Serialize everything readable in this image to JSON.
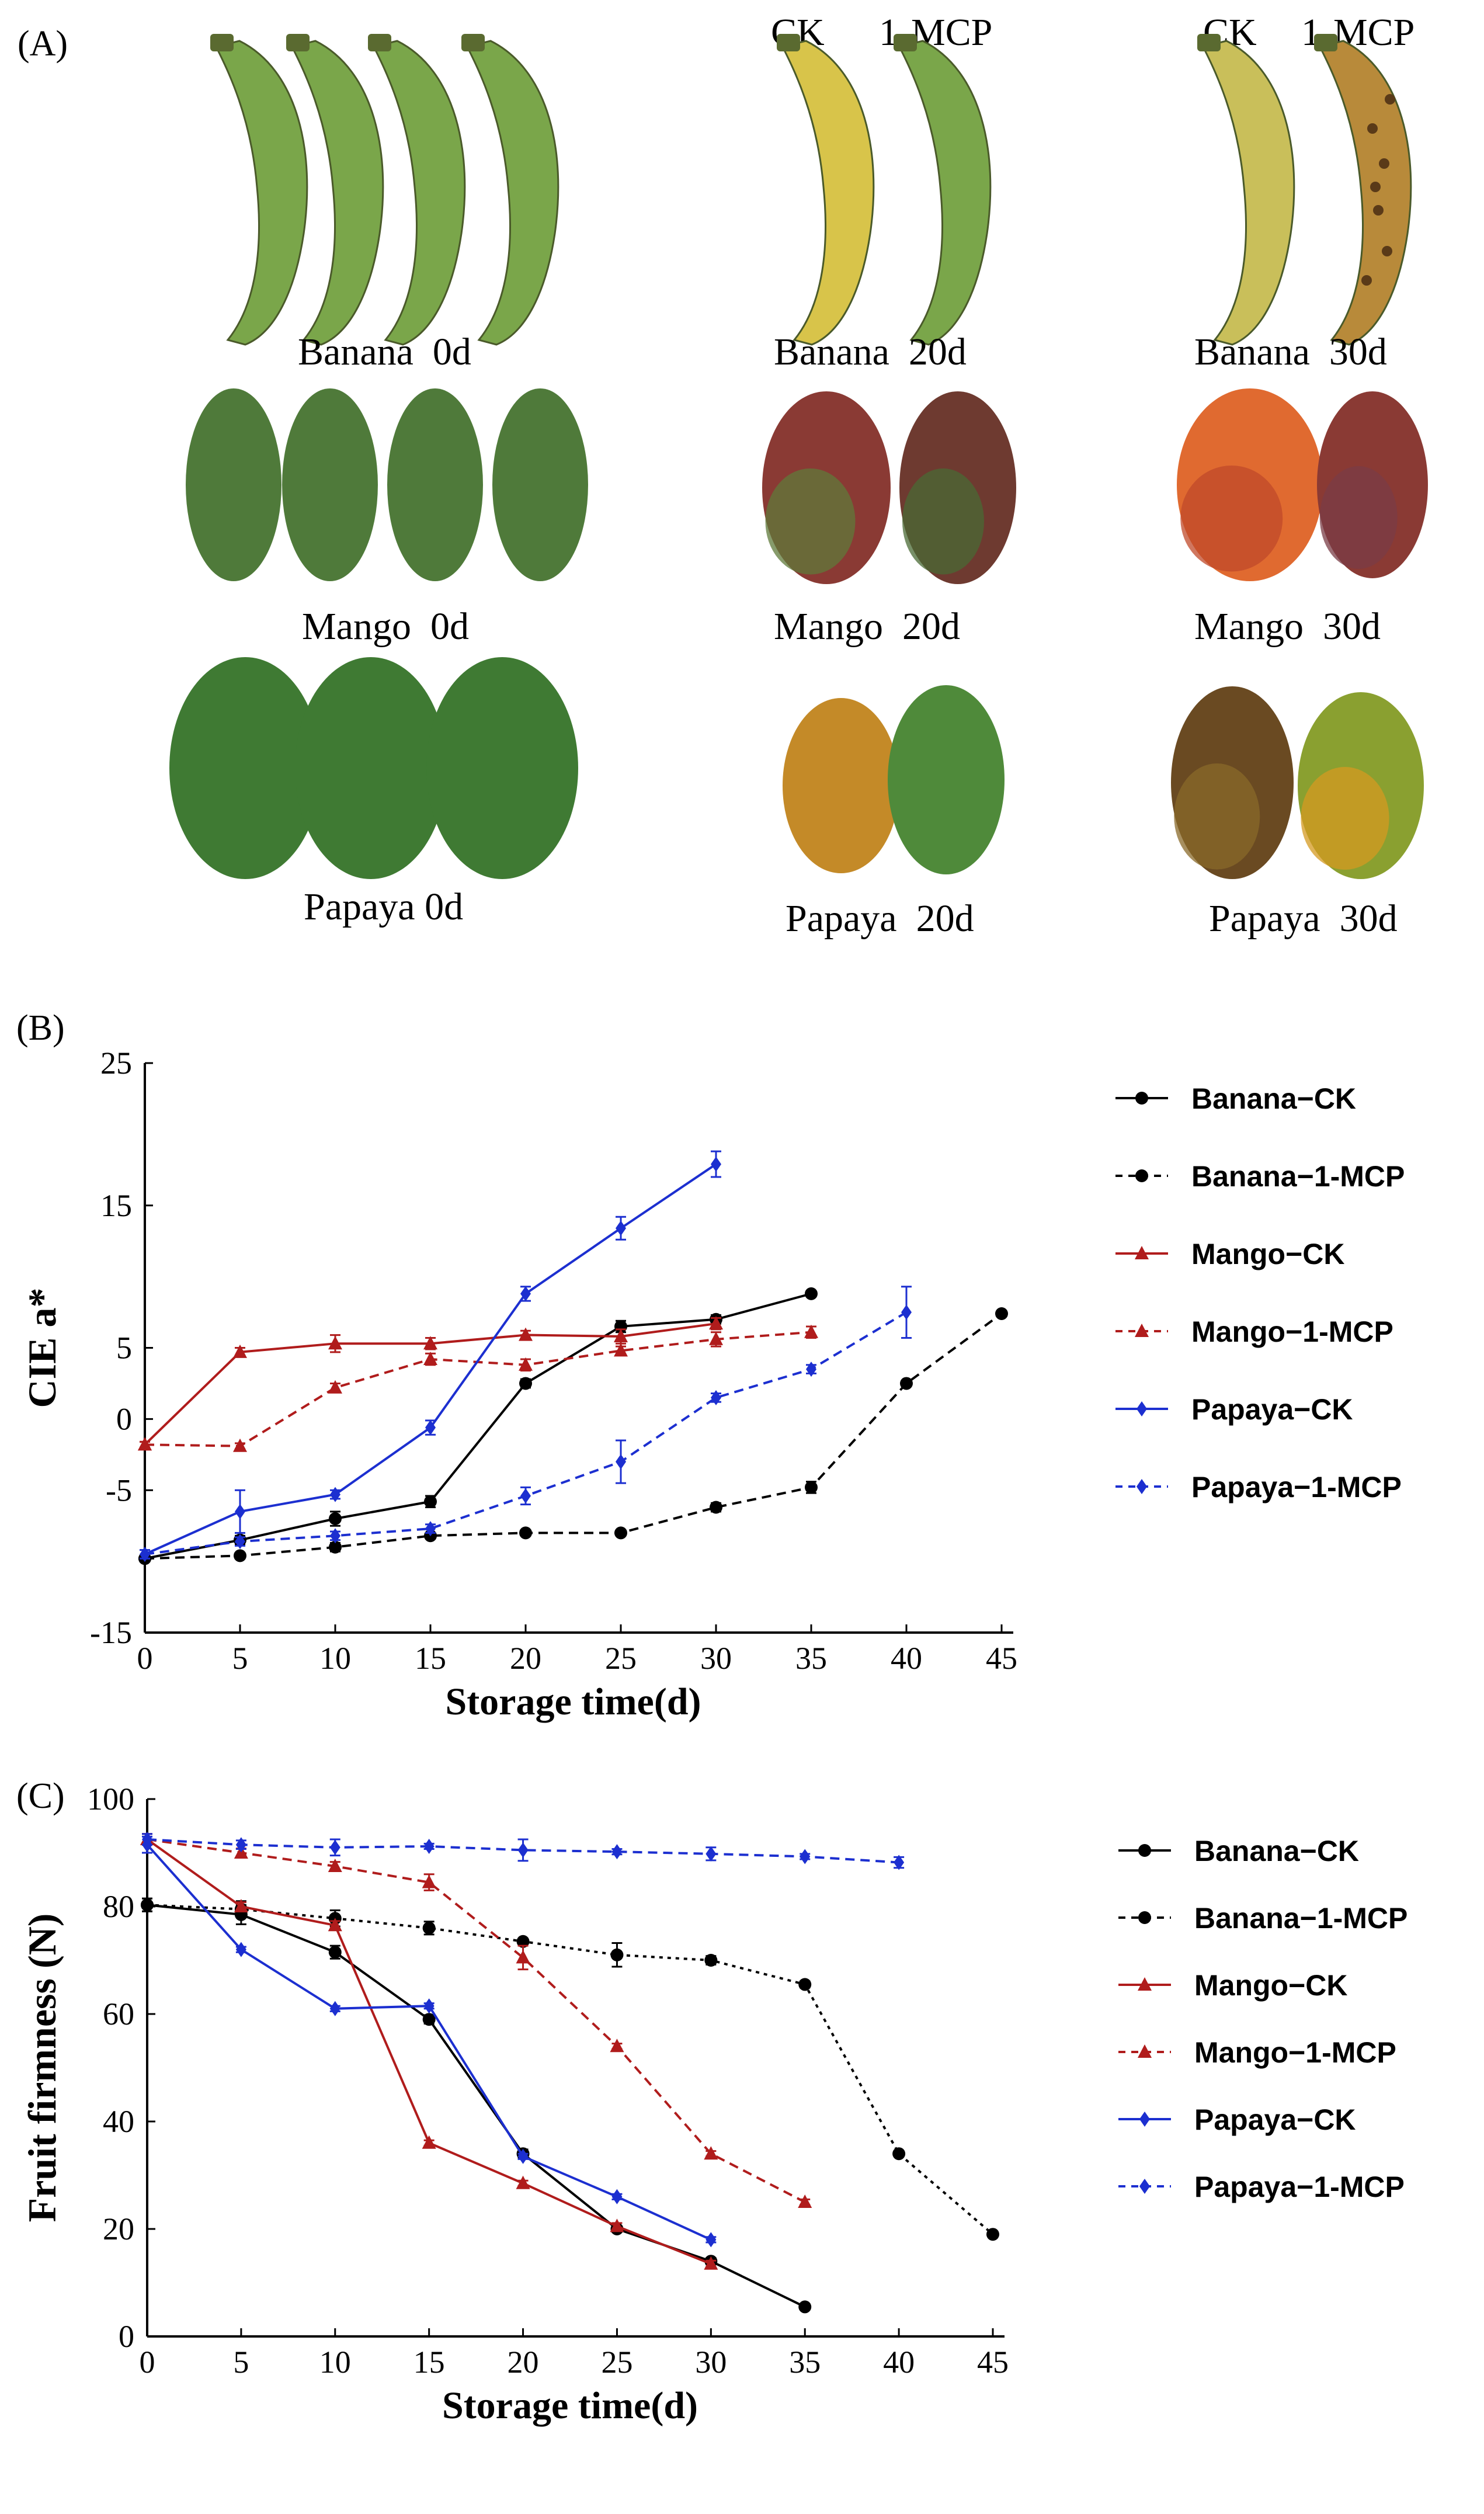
{
  "panel_a": {
    "label": "(A)",
    "column_heads": [
      "CK",
      "1-MCP",
      "CK",
      "1-MCP"
    ],
    "captions": [
      "Banana  0d",
      "Banana  20d",
      "Banana  30d",
      "Mango  0d",
      "Mango  20d",
      "Mango  30d",
      "Papaya 0d",
      "Papaya  20d",
      "Papaya  30d"
    ]
  },
  "colors": {
    "banana": "#000000",
    "mango": "#b01c1c",
    "papaya": "#1c2fd0",
    "banana_green": "#7aa64a",
    "banana_yellow": "#d8c44a",
    "mango_green": "#4f7a3a",
    "mango_red": "#8a3a34",
    "mango_orange": "#e06a30",
    "papaya_green": "#3f7a33",
    "papaya_orange": "#c48a28",
    "papaya_brown": "#6a4a22"
  },
  "chart_data": [
    {
      "panel_label": "(B)",
      "type": "line",
      "xlabel": "Storage time(d)",
      "ylabel": "CIE a*",
      "xlim": [
        0,
        45
      ],
      "ylim": [
        -15,
        25
      ],
      "xticks": [
        "0",
        "5",
        "10",
        "15",
        "20",
        "25",
        "30",
        "35",
        "40",
        "45"
      ],
      "yticks": [
        "-15",
        "-5",
        "0",
        "5",
        "15",
        "25"
      ],
      "legend_position": "right",
      "series": [
        {
          "name": "Banana−CK",
          "fruit": "banana",
          "dashed": false,
          "marker": "circle",
          "x": [
            0,
            5,
            10,
            15,
            20,
            25,
            30,
            35
          ],
          "y": [
            -9.8,
            -8.5,
            -7.0,
            -5.8,
            2.5,
            6.5,
            7.0,
            8.8
          ],
          "err": [
            0.2,
            0.3,
            0.5,
            0.4,
            0.3,
            0.4,
            0.3,
            0.2
          ]
        },
        {
          "name": "Banana−1-MCP",
          "fruit": "banana",
          "dashed": true,
          "marker": "circle",
          "x": [
            0,
            5,
            10,
            15,
            20,
            25,
            30,
            35,
            40,
            45
          ],
          "y": [
            -9.8,
            -9.6,
            -9.0,
            -8.2,
            -8.0,
            -8.0,
            -6.2,
            -4.8,
            2.5,
            7.4
          ],
          "err": [
            0.2,
            0.2,
            0.3,
            0.2,
            0.2,
            0.2,
            0.3,
            0.4,
            0.2,
            0.2
          ]
        },
        {
          "name": "Mango−CK",
          "fruit": "mango",
          "dashed": false,
          "marker": "triangle",
          "x": [
            0,
            5,
            10,
            15,
            20,
            25,
            30
          ],
          "y": [
            -1.8,
            4.7,
            5.3,
            5.3,
            5.9,
            5.8,
            6.7
          ],
          "err": [
            0.2,
            0.3,
            0.6,
            0.4,
            0.3,
            0.5,
            0.4
          ]
        },
        {
          "name": "Mango−1-MCP",
          "fruit": "mango",
          "dashed": true,
          "marker": "triangle",
          "x": [
            0,
            5,
            10,
            15,
            20,
            25,
            30,
            35
          ],
          "y": [
            -1.8,
            -1.9,
            2.2,
            4.2,
            3.8,
            4.8,
            5.6,
            6.1
          ],
          "err": [
            0.2,
            0.2,
            0.3,
            0.4,
            0.4,
            0.3,
            0.5,
            0.4
          ]
        },
        {
          "name": "Papaya−CK",
          "fruit": "papaya",
          "dashed": false,
          "marker": "diamond",
          "x": [
            0,
            5,
            10,
            15,
            20,
            25,
            30
          ],
          "y": [
            -9.5,
            -6.5,
            -5.3,
            -0.6,
            8.8,
            13.4,
            17.9
          ],
          "err": [
            0.3,
            1.5,
            0.3,
            0.5,
            0.5,
            0.8,
            0.9
          ]
        },
        {
          "name": "Papaya−1-MCP",
          "fruit": "papaya",
          "dashed": true,
          "marker": "diamond",
          "x": [
            0,
            5,
            10,
            15,
            20,
            25,
            30,
            35,
            40
          ],
          "y": [
            -9.5,
            -8.6,
            -8.2,
            -7.7,
            -5.4,
            -3.0,
            1.5,
            3.5,
            7.5
          ],
          "err": [
            0.3,
            0.3,
            0.3,
            0.3,
            0.6,
            1.5,
            0.3,
            0.3,
            1.8
          ]
        }
      ]
    },
    {
      "panel_label": "(C)",
      "type": "line",
      "xlabel": "Storage time(d)",
      "ylabel": "Fruit firmness (N)",
      "xlim": [
        0,
        45
      ],
      "ylim": [
        0,
        100
      ],
      "xticks": [
        "0",
        "5",
        "10",
        "15",
        "20",
        "25",
        "30",
        "35",
        "40",
        "45"
      ],
      "yticks": [
        "0",
        "20",
        "40",
        "60",
        "80",
        "100"
      ],
      "legend_position": "right",
      "series": [
        {
          "name": "Banana−CK",
          "fruit": "banana",
          "dashed": false,
          "marker": "circle",
          "x": [
            0,
            5,
            10,
            15,
            20,
            25,
            30,
            35
          ],
          "y": [
            80.3,
            78.5,
            71.5,
            59,
            34,
            20,
            14,
            5.5
          ],
          "err": [
            1.2,
            1.8,
            1.2,
            0.8,
            0.8,
            0.6,
            0.6,
            0.5
          ]
        },
        {
          "name": "Banana−1-MCP",
          "fruit": "banana",
          "dashed": true,
          "marker": "circle",
          "x": [
            0,
            5,
            10,
            15,
            20,
            25,
            30,
            35,
            40,
            45
          ],
          "y": [
            80.3,
            79.5,
            77.8,
            76,
            73.5,
            71,
            70,
            65.5,
            34,
            19
          ],
          "err": [
            1.2,
            1.5,
            1.5,
            1.2,
            0.5,
            2.2,
            0.8,
            0.6,
            0.5,
            0.5
          ]
        },
        {
          "name": "Mango−CK",
          "fruit": "mango",
          "dashed": false,
          "marker": "triangle",
          "x": [
            0,
            5,
            10,
            15,
            20,
            25,
            30
          ],
          "y": [
            92.5,
            80,
            76.5,
            36,
            28.5,
            20.5,
            13.5
          ],
          "err": [
            1.0,
            0.8,
            0.8,
            0.5,
            0.5,
            0.6,
            0.6
          ]
        },
        {
          "name": "Mango−1-MCP",
          "fruit": "mango",
          "dashed": true,
          "marker": "triangle",
          "x": [
            0,
            5,
            10,
            15,
            20,
            25,
            30,
            35
          ],
          "y": [
            92.5,
            90,
            87.5,
            84.5,
            70.5,
            54,
            34,
            25
          ],
          "err": [
            1.0,
            0.8,
            0.8,
            1.5,
            2.2,
            0.5,
            0.5,
            0.5
          ]
        },
        {
          "name": "Papaya−CK",
          "fruit": "papaya",
          "dashed": false,
          "marker": "diamond",
          "x": [
            0,
            5,
            10,
            15,
            20,
            25,
            30
          ],
          "y": [
            91.5,
            72,
            61,
            61.5,
            33.5,
            26,
            18
          ],
          "err": [
            1.5,
            0.5,
            0.5,
            0.5,
            0.5,
            0.5,
            0.5
          ]
        },
        {
          "name": "Papaya−1-MCP",
          "fruit": "papaya",
          "dashed": true,
          "marker": "diamond",
          "x": [
            0,
            5,
            10,
            15,
            20,
            25,
            30,
            35,
            40
          ],
          "y": [
            92.5,
            91.5,
            91,
            91.2,
            90.5,
            90.2,
            89.8,
            89.3,
            88.2
          ],
          "err": [
            1.0,
            0.8,
            1.5,
            0.5,
            2.0,
            0.5,
            1.2,
            0.5,
            1.0
          ]
        }
      ]
    }
  ]
}
